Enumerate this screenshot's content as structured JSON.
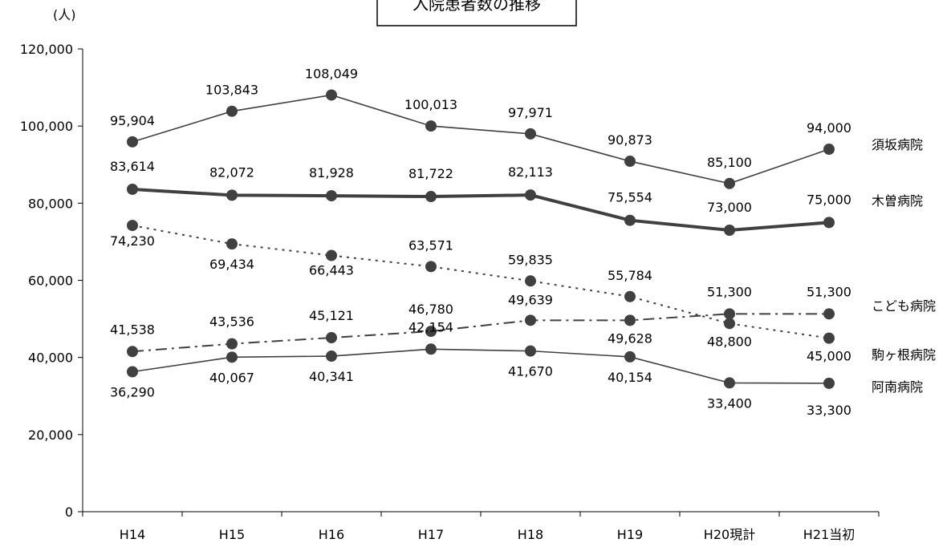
{
  "chart_data": {
    "type": "line",
    "title": "入院患者数の推移",
    "ylabel": "(人)",
    "ylim": [
      0,
      120000
    ],
    "yticks": [
      0,
      20000,
      40000,
      60000,
      80000,
      100000,
      120000
    ],
    "ytick_labels": [
      "0",
      "20,000",
      "40,000",
      "60,000",
      "80,000",
      "100,000",
      "120,000"
    ],
    "categories": [
      "H14",
      "H15",
      "H16",
      "H17",
      "H18",
      "H19",
      "H20現計",
      "H21当初"
    ],
    "grid": false,
    "legend": "inline-right",
    "marker_color": "#404040",
    "series": [
      {
        "name": "須坂病院",
        "style": "solid",
        "values": [
          95904,
          103843,
          108049,
          100013,
          97971,
          90873,
          85100,
          94000
        ],
        "labels": [
          "95,904",
          "103,843",
          "108,049",
          "100,013",
          "97,971",
          "90,873",
          "85,100",
          "94,000"
        ]
      },
      {
        "name": "木曽病院",
        "style": "thick",
        "values": [
          83614,
          82072,
          81928,
          81722,
          82113,
          75554,
          73000,
          75000
        ],
        "labels": [
          "83,614",
          "82,072",
          "81,928",
          "81,722",
          "82,113",
          "75,554",
          "73,000",
          "75,000"
        ]
      },
      {
        "name": "駒ヶ根病院",
        "style": "dotted",
        "values": [
          74230,
          69434,
          66443,
          63571,
          59835,
          55784,
          48800,
          45000
        ],
        "labels": [
          "74,230",
          "69,434",
          "66,443",
          "63,571",
          "59,835",
          "55,784",
          "48,800",
          "45,000"
        ]
      },
      {
        "name": "こども病院",
        "style": "dashdot",
        "values": [
          41538,
          43536,
          45121,
          46780,
          49639,
          49628,
          51300,
          51300
        ],
        "labels": [
          "41,538",
          "43,536",
          "45,121",
          "46,780",
          "49,639",
          "49,628",
          "51,300",
          "51,300"
        ]
      },
      {
        "name": "阿南病院",
        "style": "solid",
        "values": [
          36290,
          40067,
          40341,
          42154,
          41670,
          40154,
          33400,
          33300
        ],
        "labels": [
          "36,290",
          "40,067",
          "40,341",
          "42,154",
          "41,670",
          "40,154",
          "33,400",
          "33,300"
        ]
      }
    ]
  }
}
